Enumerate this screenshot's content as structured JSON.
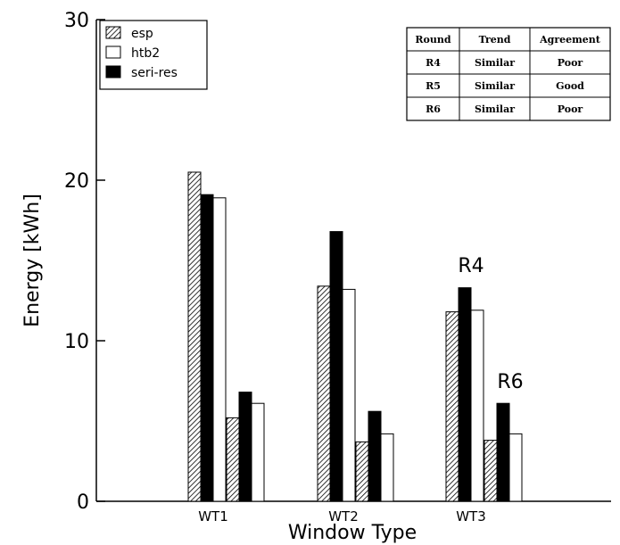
{
  "chart_data": {
    "type": "bar",
    "xlabel": "Window Type",
    "ylabel": "Energy [kWh]",
    "ylim": [
      0,
      30
    ],
    "yticks": [
      0,
      10,
      20,
      30
    ],
    "categories": [
      "WT1",
      "WT2",
      "WT3"
    ],
    "rounds": [
      "R4",
      "R6"
    ],
    "series": [
      {
        "name": "esp",
        "pattern": "hatched",
        "values": [
          [
            20.5,
            5.2
          ],
          [
            13.4,
            3.7
          ],
          [
            11.8,
            3.8
          ]
        ]
      },
      {
        "name": "seri-res",
        "pattern": "solid-black",
        "values": [
          [
            19.1,
            6.8
          ],
          [
            16.8,
            5.6
          ],
          [
            13.3,
            6.1
          ]
        ]
      },
      {
        "name": "htb2",
        "pattern": "white",
        "values": [
          [
            18.9,
            6.1
          ],
          [
            13.2,
            4.2
          ],
          [
            11.9,
            4.2
          ]
        ]
      }
    ],
    "legend": {
      "position": "top-left",
      "entries": [
        {
          "name": "esp",
          "pattern": "hatched"
        },
        {
          "name": "htb2",
          "pattern": "white"
        },
        {
          "name": "seri-res",
          "pattern": "solid-black"
        }
      ]
    },
    "annotations": [
      "R4",
      "R6"
    ],
    "table": {
      "position": "top-right",
      "headers": [
        "Round",
        "Trend",
        "Agreement"
      ],
      "rows": [
        [
          "R4",
          "Similar",
          "Poor"
        ],
        [
          "R5",
          "Similar",
          "Good"
        ],
        [
          "R6",
          "Similar",
          "Poor"
        ]
      ]
    },
    "grid": false
  }
}
